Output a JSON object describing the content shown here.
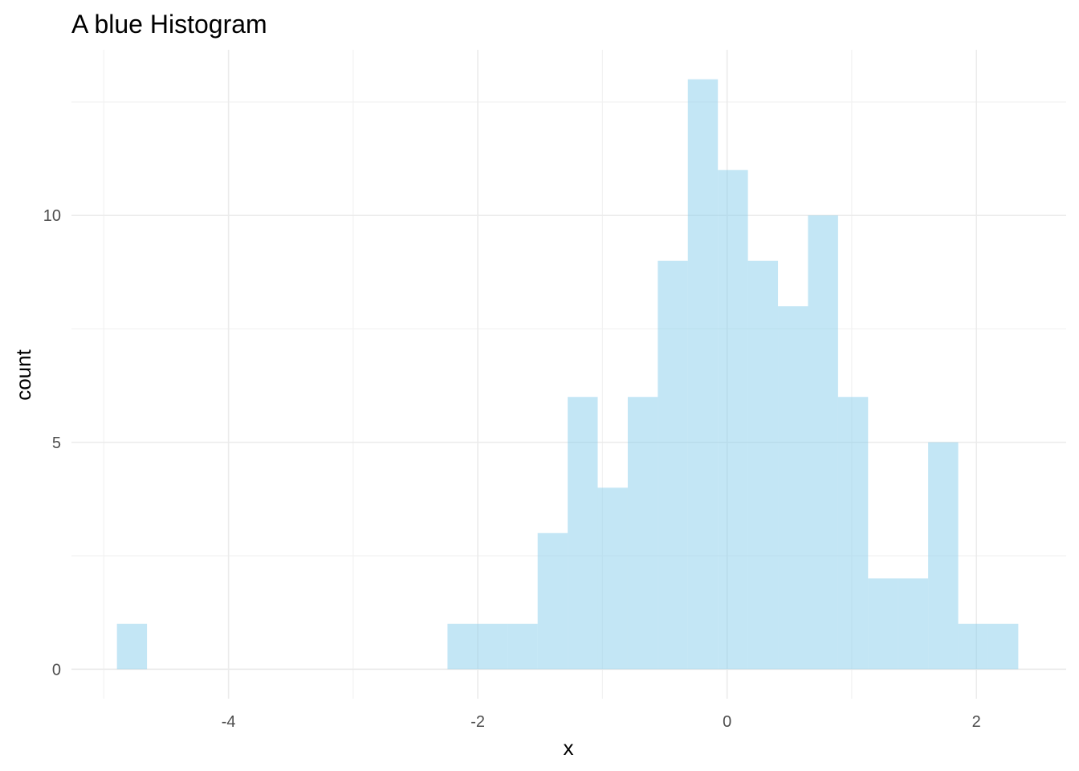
{
  "chart_data": {
    "type": "bar",
    "subtype": "histogram",
    "title": "A blue Histogram",
    "xlabel": "x",
    "ylabel": "count",
    "bin_width": 0.241,
    "bins": [
      {
        "x0": -4.895,
        "x1": -4.654,
        "count": 1
      },
      {
        "x0": -2.243,
        "x1": -2.002,
        "count": 1
      },
      {
        "x0": -2.002,
        "x1": -1.761,
        "count": 1
      },
      {
        "x0": -1.761,
        "x1": -1.52,
        "count": 1
      },
      {
        "x0": -1.52,
        "x1": -1.279,
        "count": 3
      },
      {
        "x0": -1.279,
        "x1": -1.038,
        "count": 6
      },
      {
        "x0": -1.038,
        "x1": -0.797,
        "count": 4
      },
      {
        "x0": -0.797,
        "x1": -0.556,
        "count": 6
      },
      {
        "x0": -0.556,
        "x1": -0.315,
        "count": 9
      },
      {
        "x0": -0.315,
        "x1": -0.074,
        "count": 13
      },
      {
        "x0": -0.074,
        "x1": 0.167,
        "count": 11
      },
      {
        "x0": 0.167,
        "x1": 0.408,
        "count": 9
      },
      {
        "x0": 0.408,
        "x1": 0.649,
        "count": 8
      },
      {
        "x0": 0.649,
        "x1": 0.89,
        "count": 10
      },
      {
        "x0": 0.89,
        "x1": 1.131,
        "count": 6
      },
      {
        "x0": 1.131,
        "x1": 1.372,
        "count": 2
      },
      {
        "x0": 1.372,
        "x1": 1.613,
        "count": 2
      },
      {
        "x0": 1.613,
        "x1": 1.854,
        "count": 5
      },
      {
        "x0": 1.854,
        "x1": 2.095,
        "count": 1
      },
      {
        "x0": 2.095,
        "x1": 2.336,
        "count": 1
      }
    ],
    "x_ticks": [
      -4,
      -2,
      0,
      2
    ],
    "x_tick_labels": [
      "-4",
      "-2",
      "0",
      "2"
    ],
    "x_minor_ticks": [
      -5,
      -3,
      -1,
      1
    ],
    "y_ticks": [
      0,
      5,
      10
    ],
    "y_tick_labels": [
      "0",
      "5",
      "10"
    ],
    "y_minor_ticks": [
      2.5,
      7.5,
      12.5
    ],
    "xlim": [
      -5.26,
      2.72
    ],
    "ylim": [
      -0.65,
      13.65
    ],
    "grid": true,
    "legend": "none",
    "fill_color": "#87CEEB",
    "fill_opacity": 0.5
  }
}
